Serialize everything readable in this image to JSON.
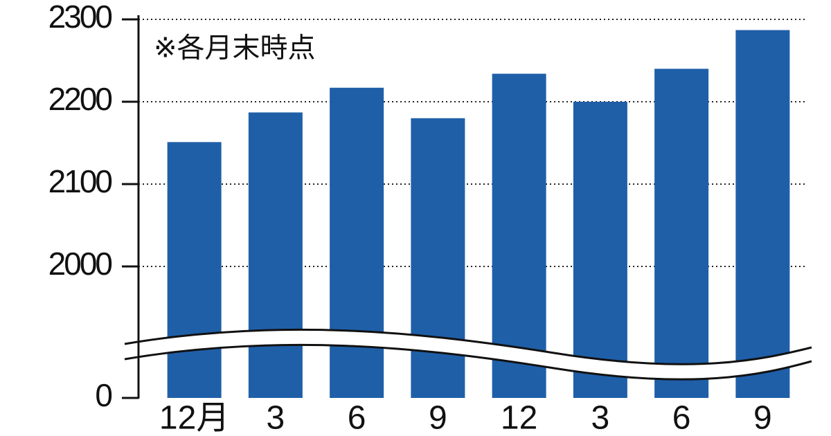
{
  "chart_data": {
    "type": "bar",
    "subtitle": "※各月末時点",
    "categories": [
      "12月",
      "3",
      "6",
      "9",
      "12",
      "3",
      "6",
      "9"
    ],
    "values": [
      2151,
      2187,
      2217,
      2180,
      2234,
      2200,
      2240,
      2287
    ],
    "color": "#1f5fa8",
    "ylim": [
      0,
      2300
    ],
    "yticks": [
      0,
      2000,
      2100,
      2200,
      2300
    ],
    "axis_break": true,
    "grid": true
  }
}
